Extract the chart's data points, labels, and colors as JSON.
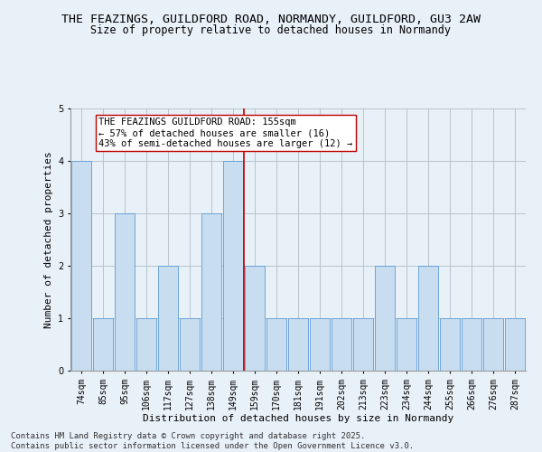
{
  "title": "THE FEAZINGS, GUILDFORD ROAD, NORMANDY, GUILDFORD, GU3 2AW",
  "subtitle": "Size of property relative to detached houses in Normandy",
  "xlabel": "Distribution of detached houses by size in Normandy",
  "ylabel": "Number of detached properties",
  "categories": [
    "74sqm",
    "85sqm",
    "95sqm",
    "106sqm",
    "117sqm",
    "127sqm",
    "138sqm",
    "149sqm",
    "159sqm",
    "170sqm",
    "181sqm",
    "191sqm",
    "202sqm",
    "213sqm",
    "223sqm",
    "234sqm",
    "244sqm",
    "255sqm",
    "266sqm",
    "276sqm",
    "287sqm"
  ],
  "values": [
    4,
    1,
    3,
    1,
    2,
    1,
    3,
    4,
    2,
    1,
    1,
    1,
    1,
    1,
    2,
    1,
    2,
    1,
    1,
    1,
    1
  ],
  "bar_color": "#c9ddf0",
  "bar_edge_color": "#5b9bd5",
  "reference_line_x": 7,
  "reference_line_color": "#c00000",
  "annotation_text": "THE FEAZINGS GUILDFORD ROAD: 155sqm\n← 57% of detached houses are smaller (16)\n43% of semi-detached houses are larger (12) →",
  "annotation_box_facecolor": "#ffffff",
  "annotation_box_edgecolor": "#c00000",
  "ylim": [
    0,
    5
  ],
  "yticks": [
    0,
    1,
    2,
    3,
    4,
    5
  ],
  "footer_text": "Contains HM Land Registry data © Crown copyright and database right 2025.\nContains public sector information licensed under the Open Government Licence v3.0.",
  "background_color": "#e8f0f8",
  "plot_bg_color": "#e8f0f8",
  "title_fontsize": 9.5,
  "subtitle_fontsize": 8.5,
  "axis_label_fontsize": 8,
  "tick_fontsize": 7,
  "annotation_fontsize": 7.5,
  "footer_fontsize": 6.5
}
